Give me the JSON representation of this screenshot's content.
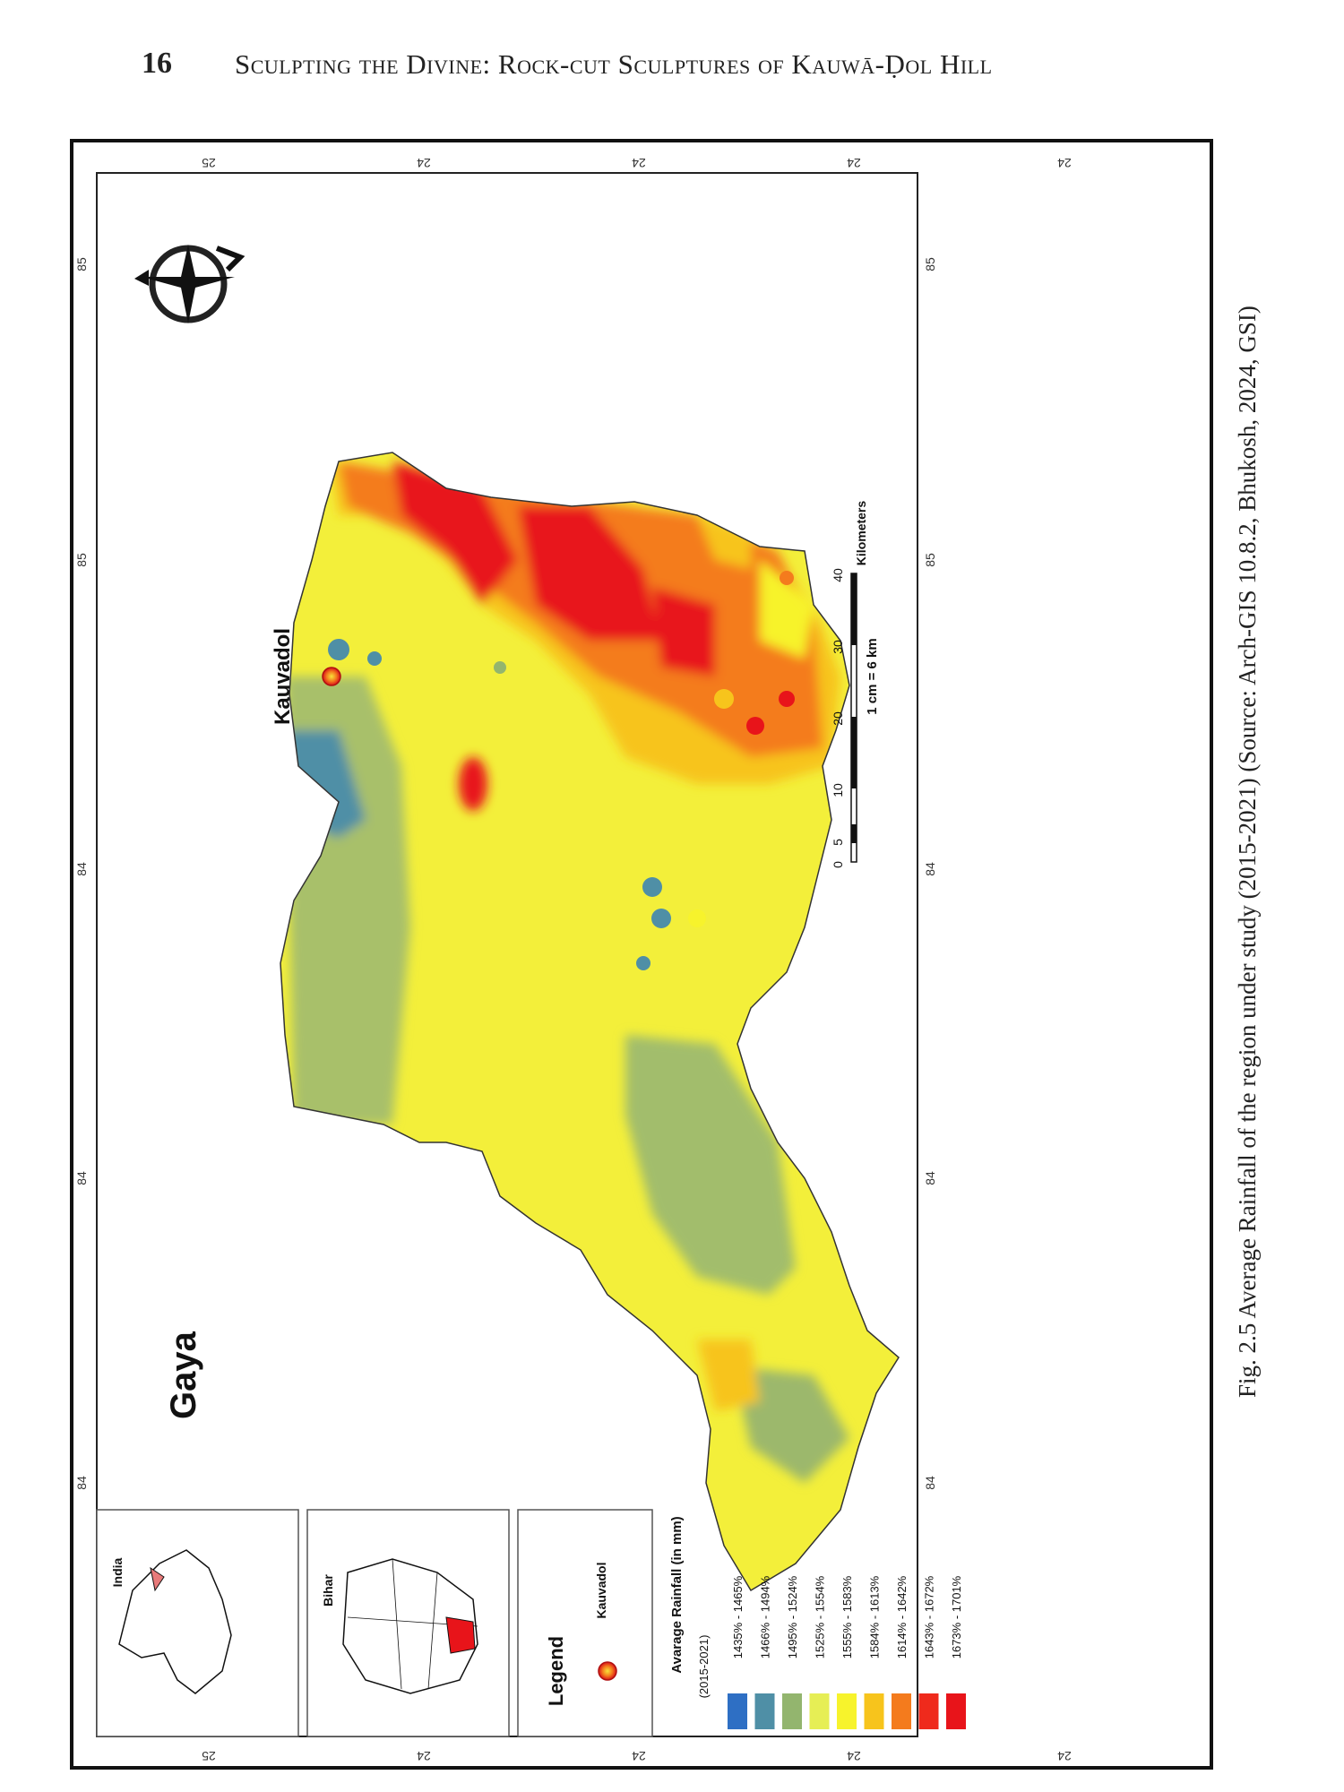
{
  "header": {
    "page_number": "16",
    "running_title": "Sculpting the Divine: Rock-cut Sculptures of Kauwā-Ḍol Hill"
  },
  "map": {
    "title": "Gaya",
    "marker_label": "Kauvadol",
    "coord_ticks_top": [
      "25",
      "24",
      "24",
      "24",
      "24"
    ],
    "coord_ticks_bottom": [
      "25",
      "24",
      "24",
      "24",
      "24"
    ],
    "coord_ticks_left": [
      "85",
      "85",
      "84",
      "84",
      "84"
    ],
    "coord_ticks_right": [
      "85",
      "85",
      "84",
      "84",
      "84"
    ],
    "scale_bar": {
      "ticks": [
        "0",
        "5",
        "10",
        "20",
        "30",
        "40"
      ],
      "unit": "Kilometers",
      "ratio": "1 cm = 6 km"
    },
    "inset_india_label": "India",
    "inset_bihar_label": "Bihar",
    "legend": {
      "title": "Legend",
      "marker_label": "Kauvadol",
      "rainfall_title": "Avarage Rainfall (in mm)",
      "rainfall_period": "(2015-2021)",
      "classes": [
        {
          "label": "1435% - 1465%",
          "color": "#2e6fc4"
        },
        {
          "label": "1466% - 1494%",
          "color": "#4f8fa6"
        },
        {
          "label": "1495% - 1524%",
          "color": "#93b56e"
        },
        {
          "label": "1525% - 1554%",
          "color": "#e6ee55"
        },
        {
          "label": "1555% - 1583%",
          "color": "#f7f32c"
        },
        {
          "label": "1584% - 1613%",
          "color": "#f7c41c"
        },
        {
          "label": "1614% - 1642%",
          "color": "#f47b1d"
        },
        {
          "label": "1643% - 1672%",
          "color": "#ef2a1c"
        },
        {
          "label": "1673% - 1701%",
          "color": "#e8141a"
        }
      ]
    }
  },
  "caption": "Fig. 2.5  Average Rainfall of the region under study (2015-2021) (Source: Arch-GIS 10.8.2, Bhukosh, 2024, GSI)"
}
